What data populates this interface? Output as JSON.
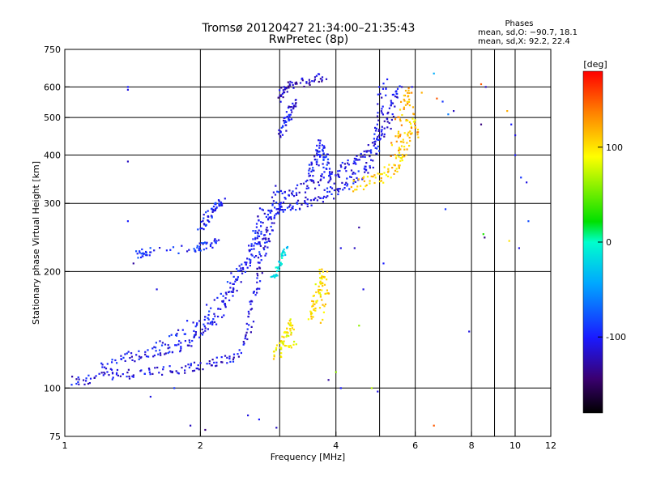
{
  "chart_data": {
    "type": "scatter",
    "title": "Tromsø 20120427 21:34:00–21:35:43",
    "subtitle": "RwPretec (8p)",
    "phases": {
      "heading": "Phases",
      "line1": "mean, sd,O: −90.7, 18.1",
      "line2": "mean, sd,X:  92.2, 22.4"
    },
    "xlabel": "Frequency [MHz]",
    "ylabel": "Stationary phase Virtual Height [km]",
    "xscale": "log",
    "yscale": "log",
    "xlim": [
      1,
      12
    ],
    "ylim": [
      75,
      750
    ],
    "x_ticks": [
      1,
      2,
      4,
      6,
      8,
      10,
      12
    ],
    "y_ticks": [
      75,
      100,
      200,
      300,
      400,
      500,
      600,
      750
    ],
    "grid_x": [
      2,
      3,
      4,
      5,
      6,
      8,
      9,
      10
    ],
    "grid_y": [
      100,
      200,
      300,
      400,
      500,
      600
    ],
    "grid": true,
    "colorbar": {
      "label": "[deg]",
      "min": -180,
      "max": 180,
      "ticks": [
        100,
        0,
        -100
      ]
    },
    "traces": [
      {
        "name": "",
        "phase": -110,
        "spread": 6,
        "points": [
          [
            1.05,
            104
          ],
          [
            1.1,
            105
          ],
          [
            1.2,
            107
          ],
          [
            1.3,
            108
          ],
          [
            1.4,
            109
          ],
          [
            1.55,
            110
          ],
          [
            1.7,
            111
          ],
          [
            1.85,
            112
          ],
          [
            2.0,
            114
          ],
          [
            2.15,
            116
          ],
          [
            2.3,
            118
          ],
          [
            2.45,
            125
          ],
          [
            2.55,
            140
          ],
          [
            2.6,
            160
          ],
          [
            2.65,
            180
          ],
          [
            2.7,
            200
          ],
          [
            2.75,
            220
          ],
          [
            2.8,
            240
          ],
          [
            2.85,
            260
          ],
          [
            2.9,
            280
          ],
          [
            3.0,
            300
          ]
        ]
      },
      {
        "name": "",
        "phase": -105,
        "spread": 7,
        "points": [
          [
            1.2,
            112
          ],
          [
            1.3,
            118
          ],
          [
            1.4,
            120
          ],
          [
            1.5,
            122
          ],
          [
            1.6,
            124
          ],
          [
            1.7,
            126
          ],
          [
            1.8,
            128
          ],
          [
            1.9,
            132
          ],
          [
            2.0,
            138
          ],
          [
            2.1,
            145
          ],
          [
            2.2,
            155
          ],
          [
            2.3,
            170
          ],
          [
            2.4,
            185
          ],
          [
            2.5,
            205
          ],
          [
            2.6,
            225
          ],
          [
            2.65,
            245
          ],
          [
            2.7,
            265
          ],
          [
            2.75,
            290
          ]
        ]
      },
      {
        "name": "",
        "phase": -100,
        "spread": 8,
        "points": [
          [
            1.6,
            130
          ],
          [
            1.8,
            140
          ],
          [
            2.0,
            150
          ],
          [
            2.15,
            165
          ],
          [
            2.3,
            180
          ],
          [
            2.45,
            200
          ],
          [
            2.6,
            220
          ],
          [
            2.7,
            240
          ],
          [
            2.8,
            270
          ],
          [
            2.9,
            300
          ],
          [
            3.0,
            330
          ]
        ]
      },
      {
        "name": "",
        "phase": -95,
        "spread": 5,
        "points": [
          [
            1.45,
            222
          ],
          [
            1.5,
            224
          ],
          [
            1.55,
            226
          ],
          [
            1.95,
            230
          ],
          [
            2.0,
            232
          ],
          [
            2.1,
            235
          ],
          [
            2.2,
            240
          ]
        ]
      },
      {
        "name": "",
        "phase": -100,
        "spread": 6,
        "points": [
          [
            2.0,
            260
          ],
          [
            2.05,
            270
          ],
          [
            2.1,
            280
          ],
          [
            2.15,
            290
          ],
          [
            2.2,
            300
          ],
          [
            2.25,
            310
          ]
        ]
      },
      {
        "name": "",
        "phase": -105,
        "spread": 7,
        "points": [
          [
            3.0,
            290
          ],
          [
            3.05,
            295
          ],
          [
            3.2,
            298
          ],
          [
            3.4,
            300
          ],
          [
            3.6,
            305
          ],
          [
            3.8,
            315
          ],
          [
            4.0,
            325
          ],
          [
            4.2,
            335
          ],
          [
            4.4,
            345
          ],
          [
            4.6,
            360
          ],
          [
            4.8,
            380
          ],
          [
            4.9,
            420
          ],
          [
            5.0,
            480
          ],
          [
            5.05,
            560
          ],
          [
            5.1,
            620
          ]
        ]
      },
      {
        "name": "",
        "phase": -110,
        "spread": 7,
        "points": [
          [
            3.0,
            310
          ],
          [
            3.2,
            320
          ],
          [
            3.4,
            330
          ],
          [
            3.6,
            340
          ],
          [
            3.8,
            350
          ],
          [
            4.0,
            360
          ],
          [
            4.2,
            370
          ],
          [
            4.4,
            385
          ],
          [
            4.6,
            400
          ],
          [
            4.8,
            420
          ],
          [
            5.0,
            450
          ],
          [
            5.2,
            480
          ],
          [
            5.3,
            520
          ],
          [
            5.4,
            560
          ],
          [
            5.45,
            600
          ]
        ]
      },
      {
        "name": "",
        "phase": -120,
        "spread": 6,
        "points": [
          [
            3.0,
            560
          ],
          [
            3.05,
            580
          ],
          [
            3.1,
            600
          ],
          [
            3.2,
            610
          ],
          [
            3.4,
            620
          ],
          [
            3.6,
            630
          ],
          [
            3.8,
            640
          ]
        ]
      },
      {
        "name": "",
        "phase": -110,
        "spread": 6,
        "points": [
          [
            3.0,
            450
          ],
          [
            3.05,
            470
          ],
          [
            3.1,
            490
          ],
          [
            3.15,
            510
          ],
          [
            3.2,
            530
          ],
          [
            3.25,
            550
          ]
        ]
      },
      {
        "name": "",
        "phase": -100,
        "spread": 7,
        "points": [
          [
            3.5,
            350
          ],
          [
            3.55,
            370
          ],
          [
            3.6,
            390
          ],
          [
            3.65,
            410
          ],
          [
            3.7,
            430
          ],
          [
            3.75,
            400
          ],
          [
            3.8,
            380
          ],
          [
            3.9,
            360
          ]
        ]
      },
      {
        "name": "",
        "phase": 105,
        "spread": 8,
        "points": [
          [
            4.3,
            330
          ],
          [
            4.6,
            340
          ],
          [
            4.9,
            345
          ],
          [
            5.1,
            355
          ],
          [
            5.3,
            365
          ],
          [
            5.5,
            380
          ],
          [
            5.6,
            400
          ],
          [
            5.7,
            430
          ],
          [
            5.8,
            460
          ],
          [
            5.9,
            500
          ]
        ]
      },
      {
        "name": "",
        "phase": 120,
        "spread": 9,
        "points": [
          [
            5.4,
            400
          ],
          [
            5.5,
            450
          ],
          [
            5.6,
            500
          ],
          [
            5.7,
            550
          ],
          [
            5.8,
            600
          ],
          [
            5.9,
            480
          ],
          [
            6.0,
            440
          ]
        ]
      },
      {
        "name": "",
        "phase": 100,
        "spread": 7,
        "points": [
          [
            3.5,
            150
          ],
          [
            3.55,
            160
          ],
          [
            3.6,
            170
          ],
          [
            3.65,
            180
          ],
          [
            3.7,
            190
          ],
          [
            3.75,
            200
          ],
          [
            3.8,
            175
          ],
          [
            3.7,
            150
          ]
        ]
      },
      {
        "name": "",
        "phase": 95,
        "spread": 7,
        "points": [
          [
            2.95,
            120
          ],
          [
            3.0,
            125
          ],
          [
            3.05,
            130
          ],
          [
            3.1,
            140
          ],
          [
            3.2,
            150
          ],
          [
            3.15,
            135
          ],
          [
            3.25,
            125
          ]
        ]
      },
      {
        "name": "",
        "phase": -20,
        "spread": 5,
        "points": [
          [
            2.9,
            190
          ],
          [
            2.95,
            200
          ],
          [
            3.0,
            210
          ],
          [
            3.05,
            220
          ],
          [
            3.1,
            230
          ]
        ]
      }
    ],
    "scatter": [
      [
        1.38,
        600,
        -100
      ],
      [
        1.38,
        590,
        -110
      ],
      [
        1.38,
        385,
        -120
      ],
      [
        1.38,
        270,
        -100
      ],
      [
        1.42,
        210,
        -130
      ],
      [
        1.6,
        180,
        -110
      ],
      [
        1.75,
        100,
        -90
      ],
      [
        1.55,
        95,
        -110
      ],
      [
        1.9,
        80,
        -120
      ],
      [
        2.05,
        78,
        -140
      ],
      [
        2.55,
        85,
        -110
      ],
      [
        2.7,
        83,
        -100
      ],
      [
        2.95,
        79,
        -120
      ],
      [
        3.85,
        105,
        -130
      ],
      [
        4.0,
        110,
        60
      ],
      [
        4.1,
        100,
        -100
      ],
      [
        4.5,
        145,
        60
      ],
      [
        4.6,
        180,
        -110
      ],
      [
        4.8,
        100,
        70
      ],
      [
        4.95,
        98,
        -110
      ],
      [
        5.1,
        210,
        -100
      ],
      [
        5.6,
        600,
        -120
      ],
      [
        5.9,
        600,
        -110
      ],
      [
        6.2,
        580,
        120
      ],
      [
        6.6,
        650,
        -40
      ],
      [
        6.7,
        560,
        150
      ],
      [
        6.9,
        550,
        -90
      ],
      [
        7.1,
        510,
        -60
      ],
      [
        7.3,
        520,
        -120
      ],
      [
        7.0,
        290,
        -90
      ],
      [
        7.9,
        140,
        -110
      ],
      [
        8.4,
        610,
        150
      ],
      [
        8.6,
        600,
        -120
      ],
      [
        8.5,
        250,
        30
      ],
      [
        8.55,
        245,
        -140
      ],
      [
        8.4,
        480,
        -140
      ],
      [
        9.6,
        520,
        120
      ],
      [
        9.8,
        480,
        -100
      ],
      [
        10.0,
        400,
        -100
      ],
      [
        10.2,
        230,
        -110
      ],
      [
        10.3,
        350,
        -90
      ],
      [
        10.6,
        340,
        -110
      ],
      [
        10.7,
        270,
        -80
      ],
      [
        10.0,
        450,
        -110
      ],
      [
        9.7,
        240,
        100
      ],
      [
        6.6,
        80,
        150
      ],
      [
        4.1,
        230,
        -110
      ],
      [
        4.4,
        230,
        -120
      ],
      [
        4.5,
        260,
        -130
      ]
    ]
  }
}
